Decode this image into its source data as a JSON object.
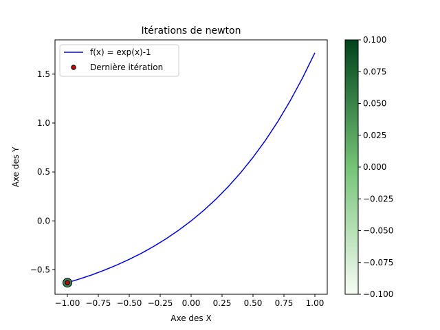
{
  "chart_data": {
    "type": "line",
    "title": "Itérations de newton",
    "xlabel": "Axe des X",
    "ylabel": "Axe des Y",
    "xlim": [
      -1.1,
      1.1
    ],
    "ylim": [
      -0.75,
      1.85
    ],
    "xticks": [
      -1.0,
      -0.75,
      -0.5,
      -0.25,
      0.0,
      0.25,
      0.5,
      0.75,
      1.0
    ],
    "xtick_labels": [
      "−1.00",
      "−0.75",
      "−0.50",
      "−0.25",
      "0.00",
      "0.25",
      "0.50",
      "0.75",
      "1.00"
    ],
    "yticks": [
      -0.5,
      0.0,
      0.5,
      1.0,
      1.5
    ],
    "ytick_labels": [
      "−0.5",
      "0.0",
      "0.5",
      "1.0",
      "1.5"
    ],
    "grid": false,
    "legend_position": "top-left",
    "series": [
      {
        "name": "f(x) = exp(x)-1",
        "color": "#0000ff",
        "x": [
          -1.0,
          -0.9,
          -0.8,
          -0.7,
          -0.6,
          -0.5,
          -0.4,
          -0.3,
          -0.2,
          -0.1,
          0.0,
          0.1,
          0.2,
          0.3,
          0.4,
          0.5,
          0.6,
          0.7,
          0.8,
          0.9,
          1.0
        ],
        "y": [
          -0.632,
          -0.593,
          -0.551,
          -0.503,
          -0.451,
          -0.393,
          -0.33,
          -0.259,
          -0.181,
          -0.095,
          0.0,
          0.105,
          0.221,
          0.35,
          0.492,
          0.649,
          0.822,
          1.014,
          1.226,
          1.46,
          1.718
        ]
      }
    ],
    "scatter": [
      {
        "name": "Dernière itération",
        "color": "#cc0000",
        "edgecolor": "#000000",
        "points": [
          {
            "x": -1.0,
            "y": -0.632
          }
        ]
      }
    ],
    "colorbar": {
      "range": [
        -0.1,
        0.1
      ],
      "ticks": [
        -0.1,
        -0.075,
        -0.05,
        -0.025,
        0.0,
        0.025,
        0.05,
        0.075,
        0.1
      ],
      "tick_labels": [
        "−0.100",
        "−0.075",
        "−0.050",
        "−0.025",
        "0.000",
        "0.025",
        "0.050",
        "0.075",
        "0.100"
      ],
      "colormap": "Greens",
      "color_low": "#f7fcf5",
      "color_mid": "#74c476",
      "color_high": "#00441b"
    },
    "marker_ring_color": "#2e8b57"
  }
}
